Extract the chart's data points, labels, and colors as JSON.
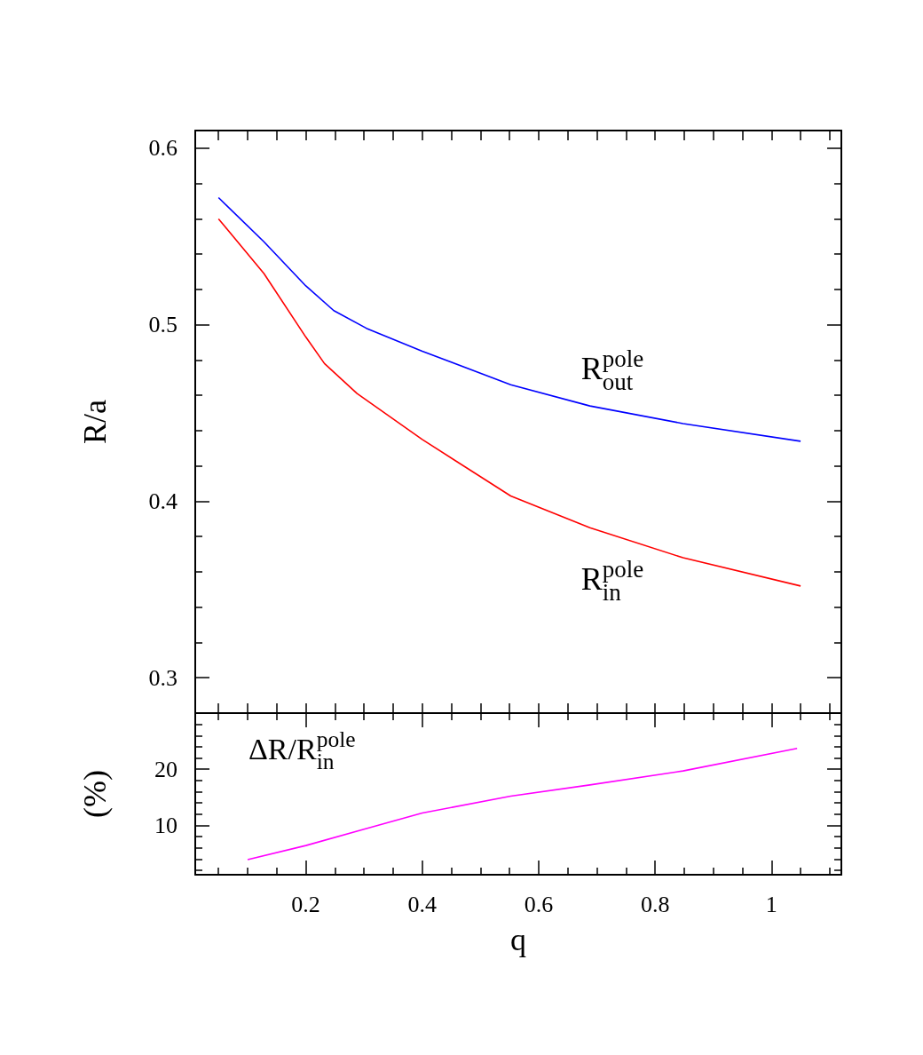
{
  "chart_data": [
    {
      "type": "line",
      "ylabel": "R/a",
      "tick_labels": "y",
      "xlim": [
        0.01,
        1.12
      ],
      "ylim": [
        0.28,
        0.61
      ],
      "xticks": [
        {
          "value": 0.05,
          "label": null
        },
        {
          "value": 0.1,
          "label": null
        },
        {
          "value": 0.15,
          "label": null
        },
        {
          "value": 0.2,
          "label": null
        },
        {
          "value": 0.25,
          "label": null
        },
        {
          "value": 0.3,
          "label": null
        },
        {
          "value": 0.35,
          "label": null
        },
        {
          "value": 0.4,
          "label": null
        },
        {
          "value": 0.45,
          "label": null
        },
        {
          "value": 0.5,
          "label": null
        },
        {
          "value": 0.55,
          "label": null
        },
        {
          "value": 0.6,
          "label": null
        },
        {
          "value": 0.65,
          "label": null
        },
        {
          "value": 0.7,
          "label": null
        },
        {
          "value": 0.75,
          "label": null
        },
        {
          "value": 0.8,
          "label": null
        },
        {
          "value": 0.85,
          "label": null
        },
        {
          "value": 0.9,
          "label": null
        },
        {
          "value": 0.95,
          "label": null
        },
        {
          "value": 1,
          "label": null
        },
        {
          "value": 1.05,
          "label": null
        },
        {
          "value": 1.1,
          "label": null
        }
      ],
      "yticks": [
        {
          "value": 0.3,
          "label": "0.3"
        },
        {
          "value": 0.32,
          "label": null
        },
        {
          "value": 0.34,
          "label": null
        },
        {
          "value": 0.36,
          "label": null
        },
        {
          "value": 0.38,
          "label": null
        },
        {
          "value": 0.4,
          "label": "0.4"
        },
        {
          "value": 0.42,
          "label": null
        },
        {
          "value": 0.44,
          "label": null
        },
        {
          "value": 0.46,
          "label": null
        },
        {
          "value": 0.48,
          "label": null
        },
        {
          "value": 0.5,
          "label": "0.5"
        },
        {
          "value": 0.52,
          "label": null
        },
        {
          "value": 0.54,
          "label": null
        },
        {
          "value": 0.56,
          "label": null
        },
        {
          "value": 0.58,
          "label": null
        },
        {
          "value": 0.6,
          "label": "0.6"
        }
      ],
      "series": [
        {
          "name": "R$^{pole}$$_{out}$",
          "color": "#0000ff",
          "x": [
            0.05,
            0.128,
            0.2,
            0.248,
            0.304,
            0.4,
            0.552,
            0.688,
            0.848,
            1.05
          ],
          "values": [
            0.572,
            0.547,
            0.522,
            0.508,
            0.498,
            0.485,
            0.466,
            0.454,
            0.444,
            0.434
          ]
        },
        {
          "name": "R$^{pole}$$_{in}$",
          "color": "#ff0000",
          "x": [
            0.05,
            0.128,
            0.2,
            0.232,
            0.288,
            0.4,
            0.552,
            0.688,
            0.848,
            1.05
          ],
          "values": [
            0.56,
            0.529,
            0.493,
            0.478,
            0.461,
            0.435,
            0.403,
            0.385,
            0.368,
            0.352
          ]
        }
      ]
    },
    {
      "type": "line",
      "xlabel": "q",
      "ylabel": "(%)",
      "annotations": [
        "ΔR/R$^{pole}$$_{in}$"
      ],
      "xlim": [
        0.01,
        1.12
      ],
      "ylim": [
        1.2,
        30
      ],
      "xticks": [
        {
          "value": 0.05,
          "label": null
        },
        {
          "value": 0.1,
          "label": null
        },
        {
          "value": 0.15,
          "label": null
        },
        {
          "value": 0.2,
          "label": "0.2"
        },
        {
          "value": 0.25,
          "label": null
        },
        {
          "value": 0.3,
          "label": null
        },
        {
          "value": 0.35,
          "label": null
        },
        {
          "value": 0.4,
          "label": "0.4"
        },
        {
          "value": 0.45,
          "label": null
        },
        {
          "value": 0.5,
          "label": null
        },
        {
          "value": 0.55,
          "label": null
        },
        {
          "value": 0.6,
          "label": "0.6"
        },
        {
          "value": 0.65,
          "label": null
        },
        {
          "value": 0.7,
          "label": null
        },
        {
          "value": 0.75,
          "label": null
        },
        {
          "value": 0.8,
          "label": "0.8"
        },
        {
          "value": 0.85,
          "label": null
        },
        {
          "value": 0.9,
          "label": null
        },
        {
          "value": 0.95,
          "label": null
        },
        {
          "value": 1,
          "label": "1"
        },
        {
          "value": 1.05,
          "label": null
        },
        {
          "value": 1.1,
          "label": null
        }
      ],
      "yticks": [
        {
          "value": 2,
          "label": null
        },
        {
          "value": 4,
          "label": null
        },
        {
          "value": 6,
          "label": null
        },
        {
          "value": 8,
          "label": null
        },
        {
          "value": 10,
          "label": "10"
        },
        {
          "value": 12,
          "label": null
        },
        {
          "value": 14,
          "label": null
        },
        {
          "value": 16,
          "label": null
        },
        {
          "value": 18,
          "label": null
        },
        {
          "value": 20,
          "label": "20"
        },
        {
          "value": 22,
          "label": null
        },
        {
          "value": 24,
          "label": null
        },
        {
          "value": 26,
          "label": null
        },
        {
          "value": 28,
          "label": null
        }
      ],
      "series": [
        {
          "color": "#ff00ff",
          "x": [
            0.1,
            0.2,
            0.3,
            0.4,
            0.552,
            0.688,
            0.848,
            1.044
          ],
          "values": [
            3.9,
            6.4,
            9.3,
            12.2,
            15.2,
            17.2,
            19.7,
            23.7
          ]
        }
      ]
    }
  ]
}
